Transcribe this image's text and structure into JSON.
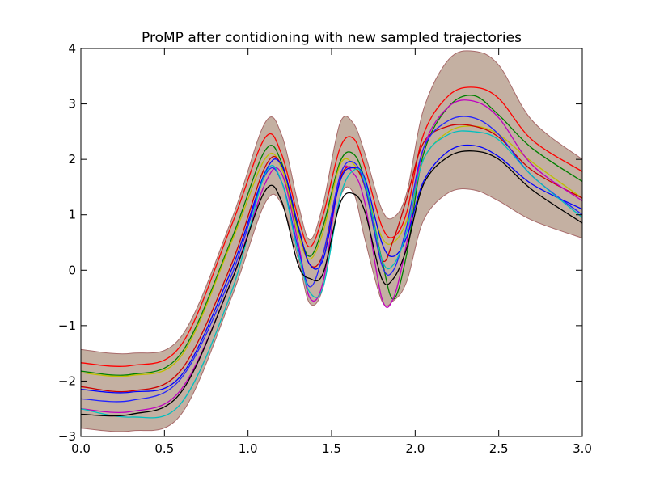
{
  "chart_data": {
    "type": "line",
    "title": "ProMP after contidioning with new sampled trajectories",
    "xlabel": "",
    "ylabel": "",
    "xlim": [
      0.0,
      3.0
    ],
    "ylim": [
      -3,
      4
    ],
    "x_ticks": [
      0.0,
      0.5,
      1.0,
      1.5,
      2.0,
      2.5,
      3.0
    ],
    "x_tick_labels": [
      "0.0",
      "0.5",
      "1.0",
      "1.5",
      "2.0",
      "2.5",
      "3.0"
    ],
    "y_ticks": [
      -3,
      -2,
      -1,
      0,
      1,
      2,
      3,
      4
    ],
    "y_tick_labels": [
      "−3",
      "−2",
      "−1",
      "0",
      "1",
      "2",
      "3",
      "4"
    ],
    "grid": false,
    "band": {
      "fill_color": "#c4b0a2",
      "edge_color": "#a86a6a",
      "x": [
        0.0,
        0.3,
        0.6,
        0.9,
        1.1,
        1.2,
        1.3,
        1.37,
        1.45,
        1.55,
        1.63,
        1.7,
        1.8,
        1.87,
        1.95,
        2.05,
        2.2,
        2.35,
        2.5,
        2.7,
        3.0
      ],
      "upper": [
        -1.43,
        -1.5,
        -1.2,
        0.9,
        2.65,
        2.45,
        1.2,
        0.55,
        1.2,
        2.65,
        2.65,
        2.1,
        1.1,
        0.95,
        1.4,
        2.9,
        3.8,
        3.95,
        3.7,
        2.7,
        2.0
      ],
      "lower": [
        -2.85,
        -2.9,
        -2.6,
        -0.5,
        1.2,
        1.2,
        0.2,
        -0.6,
        -0.3,
        1.3,
        1.4,
        0.55,
        -0.55,
        -0.55,
        -0.2,
        0.9,
        1.4,
        1.45,
        1.25,
        0.9,
        0.58
      ]
    },
    "x": [
      0.0,
      0.3,
      0.6,
      0.9,
      1.1,
      1.2,
      1.3,
      1.37,
      1.45,
      1.55,
      1.63,
      1.7,
      1.8,
      1.87,
      1.95,
      2.05,
      2.2,
      2.35,
      2.5,
      2.7,
      3.0
    ],
    "series": [
      {
        "color": "#ff0000",
        "values": [
          -1.67,
          -1.72,
          -1.35,
          0.8,
          2.38,
          2.1,
          0.95,
          0.42,
          1.0,
          2.2,
          2.38,
          1.85,
          0.8,
          0.6,
          1.05,
          2.45,
          3.15,
          3.3,
          3.1,
          2.35,
          1.78
        ]
      },
      {
        "color": "#008000",
        "values": [
          -1.82,
          -1.88,
          -1.5,
          0.55,
          2.15,
          1.95,
          0.75,
          0.25,
          0.8,
          1.95,
          2.1,
          1.6,
          0.2,
          -0.52,
          0.3,
          2.1,
          2.95,
          3.15,
          2.8,
          2.2,
          1.6
        ]
      },
      {
        "color": "#bfbf00",
        "values": [
          -1.85,
          -1.9,
          -1.55,
          0.5,
          2.0,
          1.85,
          0.65,
          0.2,
          0.7,
          1.9,
          1.92,
          1.5,
          0.6,
          0.5,
          0.9,
          2.0,
          2.5,
          2.6,
          2.45,
          1.95,
          1.3
        ]
      },
      {
        "color": "#cc0000",
        "values": [
          -2.1,
          -2.18,
          -1.8,
          0.1,
          1.85,
          1.9,
          0.8,
          0.1,
          0.3,
          1.65,
          1.85,
          1.5,
          0.2,
          0.55,
          1.3,
          2.3,
          2.6,
          2.6,
          2.4,
          1.8,
          1.3
        ]
      },
      {
        "color": "#bf00bf",
        "values": [
          -2.5,
          -2.55,
          -2.15,
          -0.2,
          1.55,
          1.75,
          0.5,
          -0.5,
          -0.2,
          1.7,
          1.75,
          1.2,
          -0.5,
          -0.5,
          0.5,
          2.2,
          2.95,
          3.05,
          2.75,
          1.9,
          1.25
        ]
      },
      {
        "color": "#0000ff",
        "values": [
          -2.15,
          -2.2,
          -1.9,
          0.0,
          1.75,
          1.9,
          0.8,
          0.1,
          0.2,
          1.6,
          1.85,
          1.65,
          0.5,
          0.25,
          0.6,
          1.6,
          2.15,
          2.25,
          2.05,
          1.55,
          1.1
        ]
      },
      {
        "color": "#2222ff",
        "values": [
          -2.32,
          -2.35,
          -1.95,
          -0.1,
          1.7,
          1.6,
          0.4,
          -0.3,
          0.3,
          1.7,
          1.95,
          1.5,
          0.1,
          0.0,
          0.8,
          2.2,
          2.7,
          2.75,
          2.45,
          1.7,
          1.0
        ]
      },
      {
        "color": "#00bfbf",
        "values": [
          -2.5,
          -2.65,
          -2.4,
          -0.4,
          1.72,
          1.6,
          0.3,
          -0.4,
          -0.3,
          1.3,
          1.8,
          1.6,
          0.2,
          0.1,
          0.7,
          2.0,
          2.45,
          2.5,
          2.35,
          1.7,
          0.95
        ]
      },
      {
        "color": "#000000",
        "values": [
          -2.6,
          -2.6,
          -2.2,
          -0.2,
          1.42,
          1.25,
          0.1,
          -0.15,
          -0.05,
          1.2,
          1.38,
          1.05,
          -0.15,
          -0.15,
          0.4,
          1.55,
          2.05,
          2.15,
          2.0,
          1.45,
          0.85
        ]
      }
    ]
  }
}
